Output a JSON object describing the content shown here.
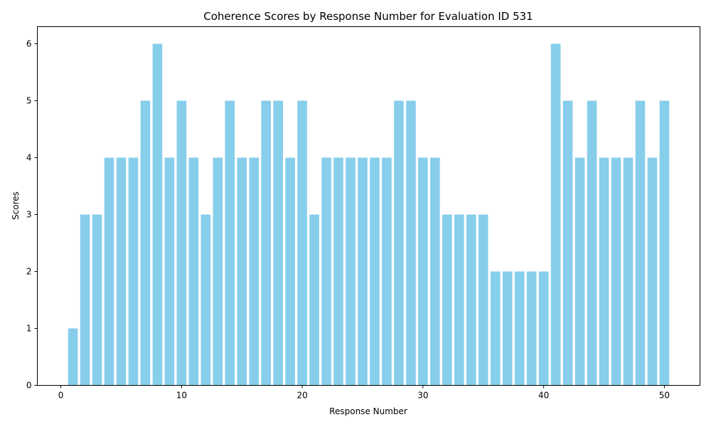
{
  "chart_data": {
    "type": "bar",
    "title": "Coherence Scores by Response Number for Evaluation ID 531",
    "xlabel": "Response Number",
    "ylabel": "Scores",
    "bar_color": "#87CEEB",
    "x": [
      1,
      2,
      3,
      4,
      5,
      6,
      7,
      8,
      9,
      10,
      11,
      12,
      13,
      14,
      15,
      16,
      17,
      18,
      19,
      20,
      21,
      22,
      23,
      24,
      25,
      26,
      27,
      28,
      29,
      30,
      31,
      32,
      33,
      34,
      35,
      36,
      37,
      38,
      39,
      40,
      41,
      42,
      43,
      44,
      45,
      46,
      47,
      48,
      49,
      50
    ],
    "values": [
      1,
      3,
      3,
      4,
      4,
      4,
      5,
      6,
      4,
      5,
      4,
      3,
      4,
      5,
      4,
      4,
      5,
      5,
      4,
      5,
      3,
      4,
      4,
      4,
      4,
      4,
      4,
      5,
      5,
      4,
      4,
      3,
      3,
      3,
      3,
      2,
      2,
      2,
      2,
      2,
      6,
      5,
      4,
      5,
      4,
      4,
      4,
      5,
      4,
      5
    ],
    "xlim": [
      -1.95,
      52.95
    ],
    "ylim": [
      0,
      6.3
    ],
    "xticks": [
      0,
      10,
      20,
      30,
      40,
      50
    ],
    "yticks": [
      0,
      1,
      2,
      3,
      4,
      5,
      6
    ],
    "grid": false,
    "legend": "none"
  }
}
